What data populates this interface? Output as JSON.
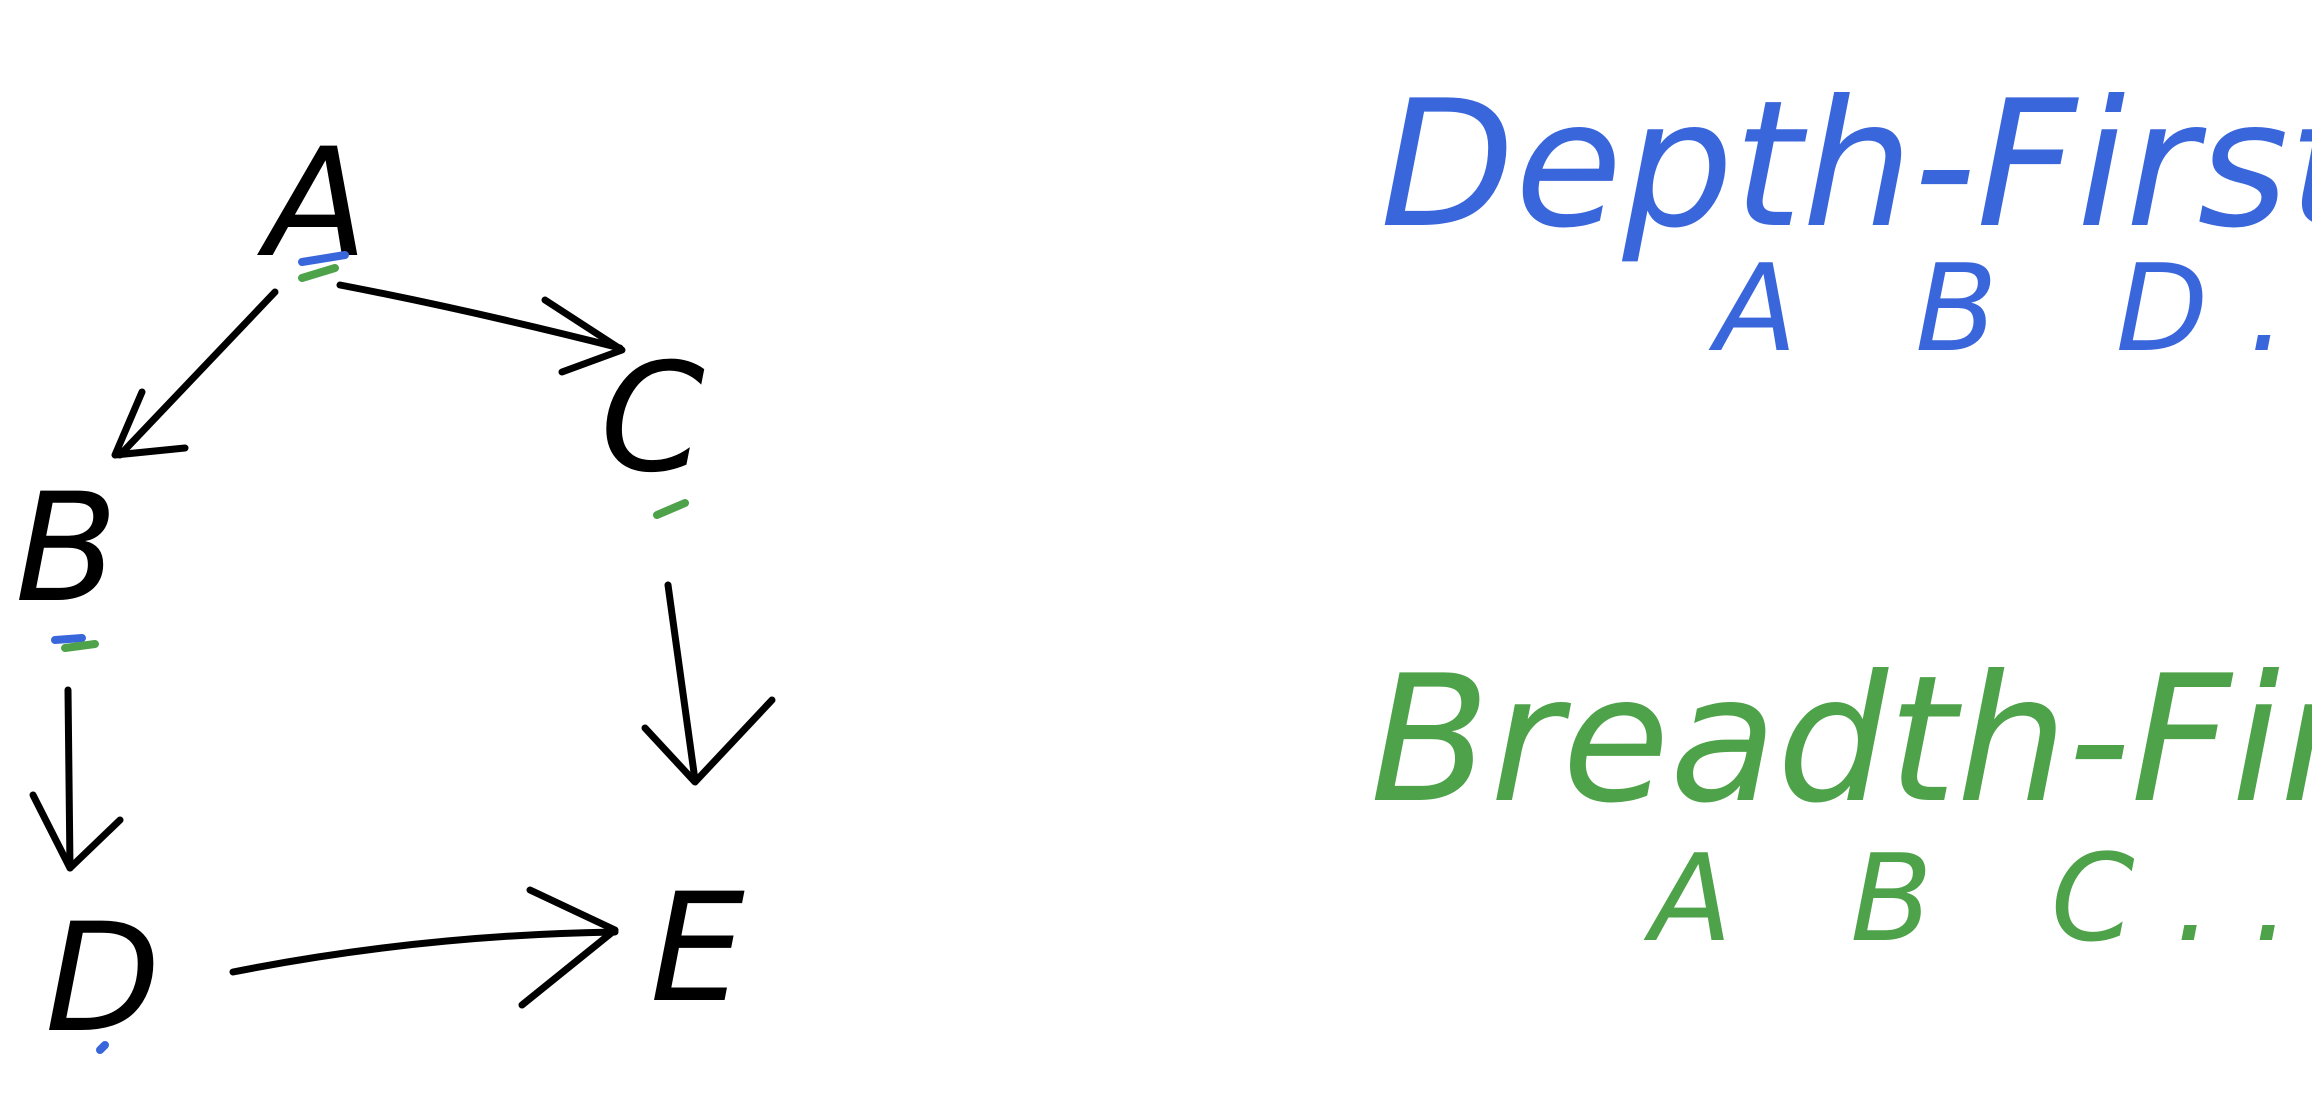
{
  "colors": {
    "ink": "#000000",
    "depth_first": "#3a66dc",
    "breadth_first": "#4ea24a",
    "background": "#ffffff"
  },
  "graph": {
    "nodes": [
      {
        "id": "A",
        "label": "A"
      },
      {
        "id": "B",
        "label": "B"
      },
      {
        "id": "C",
        "label": "C"
      },
      {
        "id": "D",
        "label": "D"
      },
      {
        "id": "E",
        "label": "E"
      }
    ],
    "edges": [
      {
        "from": "A",
        "to": "B"
      },
      {
        "from": "A",
        "to": "C"
      },
      {
        "from": "B",
        "to": "D"
      },
      {
        "from": "C",
        "to": "E"
      },
      {
        "from": "D",
        "to": "E"
      }
    ]
  },
  "depth_first": {
    "heading": "Depth-First:",
    "sequence": "A B D..."
  },
  "breadth_first": {
    "heading": "Breadth-First:",
    "sequence": "A B C..."
  }
}
